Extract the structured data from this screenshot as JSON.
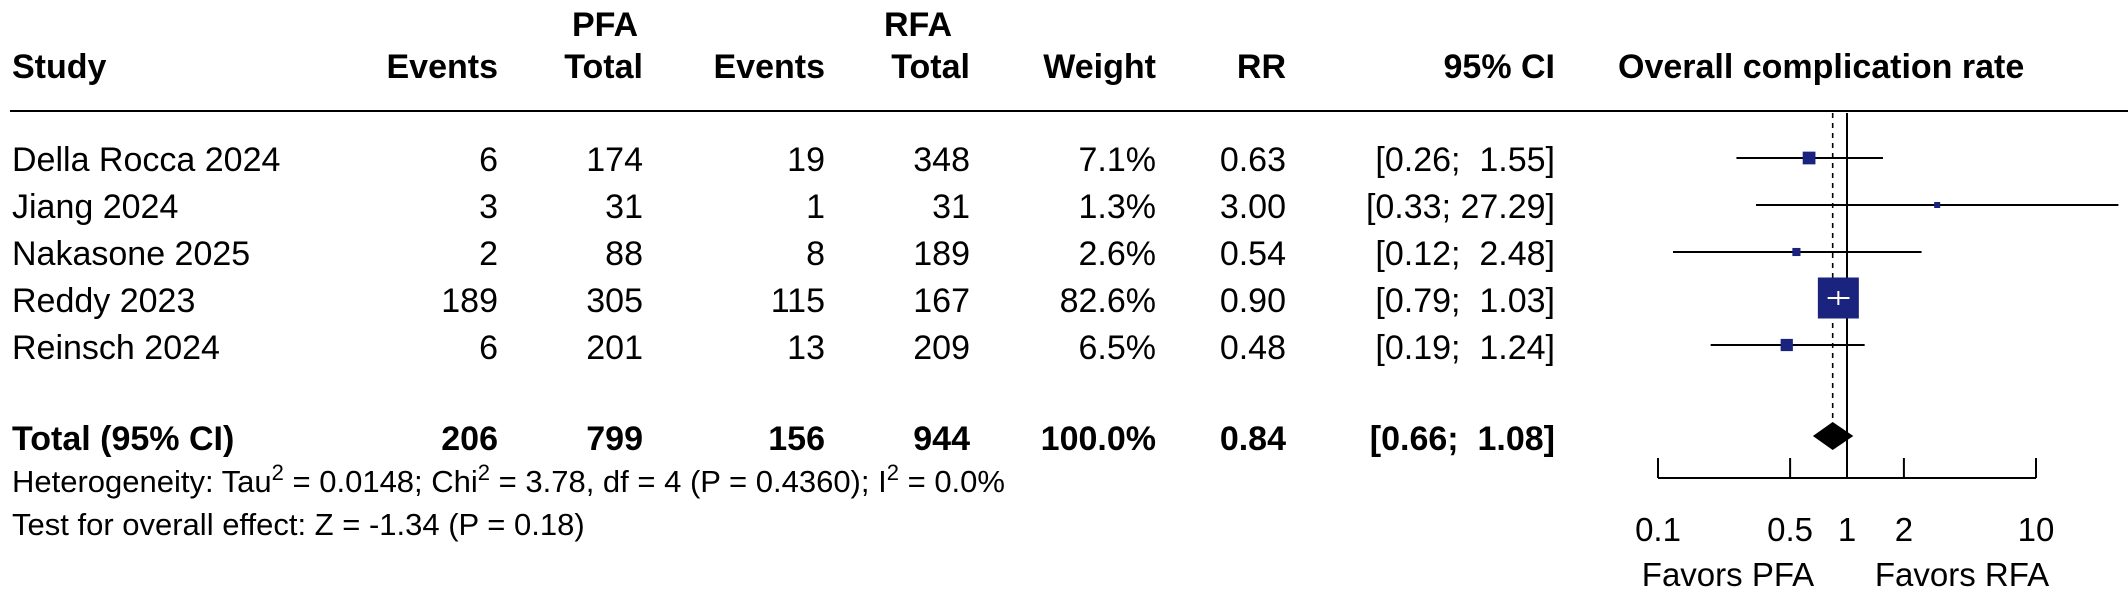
{
  "header": {
    "study": "Study",
    "pfa_group": "PFA",
    "rfa_group": "RFA",
    "events": "Events",
    "total": "Total",
    "weight": "Weight",
    "rr": "RR",
    "ci": "95% CI",
    "plot_title": "Overall complication rate"
  },
  "studies": [
    {
      "name": "Della Rocca 2024",
      "pfa_events": "6",
      "pfa_total": "174",
      "rfa_events": "19",
      "rfa_total": "348",
      "weight": "7.1%",
      "rr": "0.63",
      "ci": "[0.26;  1.55]"
    },
    {
      "name": "Jiang 2024",
      "pfa_events": "3",
      "pfa_total": "31",
      "rfa_events": "1",
      "rfa_total": "31",
      "weight": "1.3%",
      "rr": "3.00",
      "ci": "[0.33; 27.29]"
    },
    {
      "name": "Nakasone 2025",
      "pfa_events": "2",
      "pfa_total": "88",
      "rfa_events": "8",
      "rfa_total": "189",
      "weight": "2.6%",
      "rr": "0.54",
      "ci": "[0.12;  2.48]"
    },
    {
      "name": "Reddy 2023",
      "pfa_events": "189",
      "pfa_total": "305",
      "rfa_events": "115",
      "rfa_total": "167",
      "weight": "82.6%",
      "rr": "0.90",
      "ci": "[0.79;  1.03]"
    },
    {
      "name": "Reinsch 2024",
      "pfa_events": "6",
      "pfa_total": "201",
      "rfa_events": "13",
      "rfa_total": "209",
      "weight": "6.5%",
      "rr": "0.48",
      "ci": "[0.19;  1.24]"
    }
  ],
  "total": {
    "name": "Total (95% CI)",
    "pfa_events": "206",
    "pfa_total": "799",
    "rfa_events": "156",
    "rfa_total": "944",
    "weight": "100.0%",
    "rr": "0.84",
    "ci": "[0.66;  1.08]"
  },
  "footer": {
    "heterogeneity_pre": "Heterogeneity: Tau",
    "heterogeneity_tau_sup": "2",
    "heterogeneity_mid": " = 0.0148; Chi",
    "heterogeneity_chi_sup": "2",
    "heterogeneity_mid2": " = 3.78, df = 4 (P = 0.4360); I",
    "heterogeneity_i_sup": "2",
    "heterogeneity_post": " = 0.0%",
    "overall_effect": "Test for overall effect: Z = -1.34 (P = 0.18)"
  },
  "chart_data": {
    "type": "forest",
    "scale": "log",
    "xlim": [
      0.1,
      10
    ],
    "ticks": [
      0.1,
      0.5,
      1,
      2,
      10
    ],
    "tick_labels": [
      "0.1",
      "0.5",
      "1",
      "2",
      "10"
    ],
    "x_left_label": "Favors PFA",
    "x_right_label": "Favors RFA",
    "reference_line": 1,
    "pooled_line": 0.84,
    "colors": {
      "marker": "#1a237e",
      "line": "#000000"
    },
    "points": [
      {
        "name": "Della Rocca 2024",
        "rr": 0.63,
        "lower": 0.26,
        "upper": 1.55,
        "weight": 7.1
      },
      {
        "name": "Jiang 2024",
        "rr": 3.0,
        "lower": 0.33,
        "upper": 27.29,
        "weight": 1.3
      },
      {
        "name": "Nakasone 2025",
        "rr": 0.54,
        "lower": 0.12,
        "upper": 2.48,
        "weight": 2.6
      },
      {
        "name": "Reddy 2023",
        "rr": 0.9,
        "lower": 0.79,
        "upper": 1.03,
        "weight": 82.6
      },
      {
        "name": "Reinsch 2024",
        "rr": 0.48,
        "lower": 0.19,
        "upper": 1.24,
        "weight": 6.5
      }
    ],
    "pooled": {
      "rr": 0.84,
      "lower": 0.66,
      "upper": 1.08
    }
  }
}
